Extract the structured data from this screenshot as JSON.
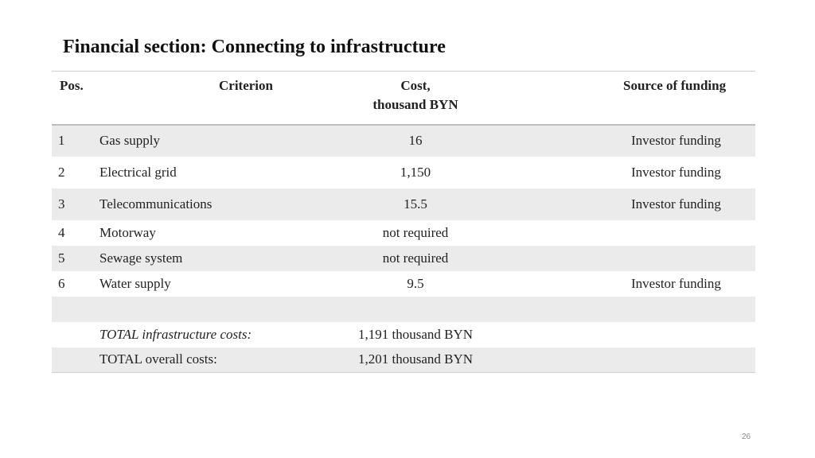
{
  "slide": {
    "title": "Financial section: Connecting to infrastructure",
    "page_number": "26"
  },
  "table": {
    "headers": {
      "pos": "Pos.",
      "criterion": "Criterion",
      "cost_line1": "Cost,",
      "cost_line2": "thousand BYN",
      "source": "Source of funding"
    },
    "rows": [
      {
        "pos": "1",
        "criterion": "Gas supply",
        "cost": "16",
        "source": "Investor funding"
      },
      {
        "pos": "2",
        "criterion": "Electrical grid",
        "cost": "1,150",
        "source": "Investor funding"
      },
      {
        "pos": "3",
        "criterion": "Telecommunications",
        "cost": "15.5",
        "source": "Investor funding"
      },
      {
        "pos": "4",
        "criterion": "Motorway",
        "cost": "not required",
        "source": ""
      },
      {
        "pos": "5",
        "criterion": "Sewage system",
        "cost": "not required",
        "source": ""
      },
      {
        "pos": "6",
        "criterion": "Water supply",
        "cost": "9.5",
        "source": "Investor funding"
      }
    ],
    "totals": [
      {
        "label": "TOTAL infrastructure costs:",
        "value": "1,191 thousand BYN"
      },
      {
        "label": "TOTAL overall costs:",
        "value": "1,201 thousand BYN"
      }
    ],
    "colors": {
      "shaded_row": "#ebebeb",
      "rule": "#bdbdbd"
    }
  }
}
